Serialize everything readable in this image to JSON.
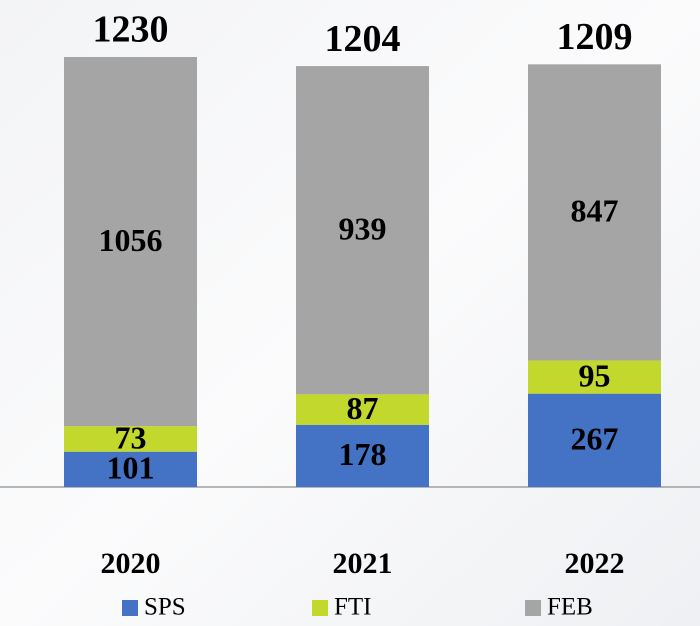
{
  "chart_data": {
    "type": "stacked_bar",
    "categories": [
      "2020",
      "2021",
      "2022"
    ],
    "series": [
      {
        "name": "SPS",
        "color": "#4472c4",
        "values": [
          101,
          178,
          267
        ]
      },
      {
        "name": "FTI",
        "color": "#c3d82c",
        "values": [
          73,
          87,
          95
        ]
      },
      {
        "name": "FEB",
        "color": "#a5a5a5",
        "values": [
          1056,
          939,
          847
        ]
      }
    ],
    "totals": [
      1230,
      1204,
      1209
    ]
  }
}
